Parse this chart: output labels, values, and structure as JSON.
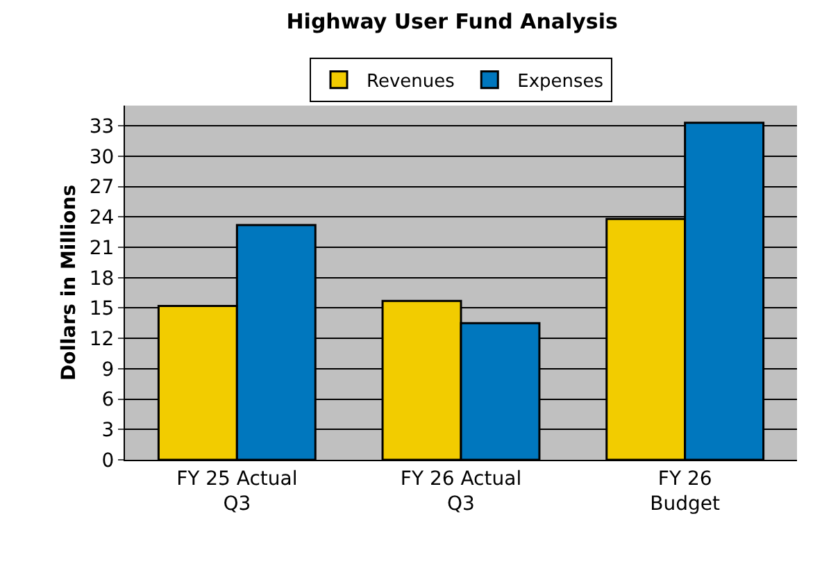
{
  "chart_data": {
    "type": "bar",
    "title": "Highway User Fund Analysis",
    "ylabel": "Dollars in Millions",
    "categories": [
      "FY 25 Actual\nQ3",
      "FY 26 Actual\nQ3",
      "FY 26\nBudget"
    ],
    "series": [
      {
        "name": "Revenues",
        "color": "#f2cc00",
        "values": [
          15.2,
          15.7,
          23.8
        ]
      },
      {
        "name": "Expenses",
        "color": "#0077be",
        "values": [
          23.2,
          13.5,
          33.3
        ]
      }
    ],
    "ylim": [
      0,
      35
    ],
    "yticks": [
      0,
      3,
      6,
      9,
      12,
      15,
      18,
      21,
      24,
      27,
      30,
      33
    ],
    "grid": "y",
    "legend": "top"
  }
}
